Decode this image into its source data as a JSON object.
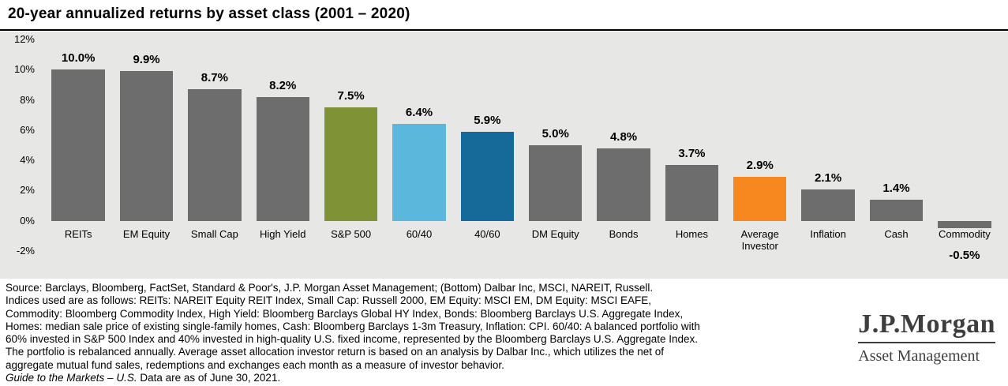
{
  "title": "20-year annualized returns by asset class (2001 – 2020)",
  "chart_data": {
    "type": "bar",
    "title": "20-year annualized returns by asset class (2001 – 2020)",
    "categories": [
      "REITs",
      "EM Equity",
      "Small Cap",
      "High Yield",
      "S&P 500",
      "60/40",
      "40/60",
      "DM Equity",
      "Bonds",
      "Homes",
      "Average Investor",
      "Inflation",
      "Cash",
      "Commodity"
    ],
    "values": [
      10.0,
      9.9,
      8.7,
      8.2,
      7.5,
      6.4,
      5.9,
      5.0,
      4.8,
      3.7,
      2.9,
      2.1,
      1.4,
      -0.5
    ],
    "value_labels": [
      "10.0%",
      "9.9%",
      "8.7%",
      "8.2%",
      "7.5%",
      "6.4%",
      "5.9%",
      "5.0%",
      "4.8%",
      "3.7%",
      "2.9%",
      "2.1%",
      "1.4%",
      "-0.5%"
    ],
    "bar_colors": [
      "#6c6d6c",
      "#6c6d6c",
      "#6c6d6c",
      "#6c6d6c",
      "#7f9336",
      "#5bb7dc",
      "#166a9a",
      "#6c6d6c",
      "#6c6d6c",
      "#6c6d6c",
      "#f6881f",
      "#6c6d6c",
      "#6c6d6c",
      "#6c6d6c"
    ],
    "xlabel": "",
    "ylabel": "",
    "ylim": [
      -2,
      12
    ],
    "yticks": [
      {
        "value": 12,
        "label": "12%"
      },
      {
        "value": 10,
        "label": "10%"
      },
      {
        "value": 8,
        "label": "8%"
      },
      {
        "value": 6,
        "label": "6%"
      },
      {
        "value": 4,
        "label": "4%"
      },
      {
        "value": 2,
        "label": "2%"
      },
      {
        "value": 0,
        "label": "0%"
      },
      {
        "value": -2,
        "label": "-2%"
      }
    ],
    "grid": false,
    "legend": "none"
  },
  "colors": {
    "chart_bg": "#e7e7e5",
    "bar_default": "#6c6d6c",
    "bar_sp500": "#7f9336",
    "bar_60_40": "#5bb7dc",
    "bar_40_60": "#166a9a",
    "bar_average_investor": "#f6881f",
    "logo": "#3e3e40"
  },
  "footer": {
    "lines": [
      "Source: Barclays, Bloomberg, FactSet, Standard & Poor's, J.P. Morgan Asset Management; (Bottom) Dalbar Inc, MSCI, NAREIT, Russell.",
      "Indices used are as follows: REITs: NAREIT Equity REIT Index, Small Cap: Russell 2000, EM Equity: MSCI EM, DM Equity: MSCI EAFE,",
      "Commodity: Bloomberg Commodity Index, High Yield: Bloomberg Barclays Global HY Index, Bonds: Bloomberg Barclays U.S. Aggregate Index,",
      "Homes: median sale price of existing single-family homes, Cash: Bloomberg Barclays 1-3m Treasury, Inflation: CPI. 60/40: A balanced portfolio with",
      "60% invested in S&P 500 Index and 40% invested in high-quality U.S. fixed income, represented by the Bloomberg Barclays U.S. Aggregate Index.",
      "The portfolio is rebalanced annually. Average asset allocation investor return is based on an analysis by Dalbar Inc., which utilizes the net of",
      "aggregate mutual fund sales, redemptions and exchanges each month as a measure of investor behavior."
    ],
    "gtm_italic": "Guide to the Markets – U.S.",
    "gtm_rest": " Data are as of June 30, 2021."
  },
  "logo": {
    "name": "J.P.Morgan",
    "subtitle": "Asset Management"
  }
}
